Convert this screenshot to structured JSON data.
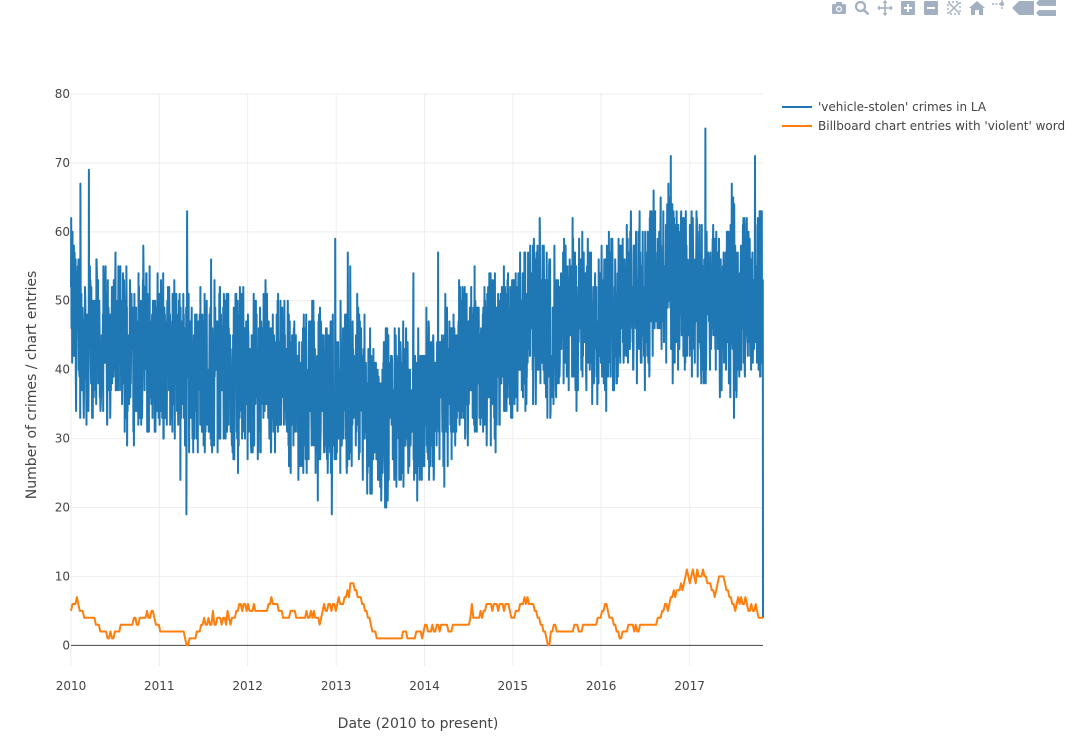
{
  "modebar": {
    "buttons": [
      "camera-icon",
      "zoom-icon",
      "pan-icon",
      "zoom-in-icon",
      "zoom-out-icon",
      "autoscale-icon",
      "home-icon",
      "spike-lines-icon",
      "hover-closest-icon",
      "hover-compare-icon"
    ],
    "color": "#a3b0c2"
  },
  "chart_data": {
    "type": "line",
    "xlabel": "Date (2010 to present)",
    "ylabel": "Number of crimes / chart entries",
    "x_ticks": [
      "2010",
      "2011",
      "2012",
      "2013",
      "2014",
      "2015",
      "2016",
      "2017"
    ],
    "y_ticks": [
      "0",
      "10",
      "20",
      "30",
      "40",
      "50",
      "60",
      "70",
      "80"
    ],
    "xlim": [
      "2010-01-01",
      "2017-10-31"
    ],
    "ylim": [
      -3,
      80
    ],
    "grid": true,
    "legend_position": "top-right",
    "series": [
      {
        "name": "'vehicle-stolen' crimes in LA",
        "color": "#1f77b4",
        "x_start": "2010-01-01",
        "x_end": "2017-10-31",
        "sampling": "daily",
        "monthly_mean": [
          50,
          46,
          44,
          45,
          43,
          44,
          44,
          45,
          43,
          43,
          44,
          42,
          44,
          43,
          41,
          42,
          42,
          42,
          41,
          40,
          41,
          40,
          39,
          40,
          41,
          40,
          40,
          39,
          40,
          38,
          37,
          40,
          40,
          39,
          38,
          39,
          38,
          38,
          36,
          37,
          38,
          37,
          36,
          37,
          38,
          38,
          37,
          38,
          36,
          35,
          34,
          33,
          34,
          35,
          36,
          34,
          35,
          34,
          35,
          36,
          36,
          37,
          38,
          40,
          41,
          39,
          41,
          42,
          41,
          42,
          42,
          44,
          43,
          44,
          45,
          46,
          47,
          48,
          47,
          45,
          44,
          46,
          48,
          49,
          48,
          47,
          48,
          49,
          47,
          47,
          48,
          50,
          50,
          49,
          50,
          51,
          52,
          53,
          53,
          52,
          51,
          52,
          50,
          51,
          50,
          49,
          50,
          48,
          49,
          50,
          49,
          51,
          50,
          51,
          50
        ],
        "spread": 14,
        "peak": 76,
        "min": 16,
        "last": 4
      },
      {
        "name": "Billboard chart entries with 'violent' words",
        "color": "#ff7f0e",
        "x_start": "2010-01-01",
        "x_end": "2017-10-31",
        "sampling": "weekly",
        "values": [
          5,
          6,
          6,
          6,
          7,
          6,
          5,
          5,
          5,
          4,
          4,
          4,
          4,
          4,
          4,
          4,
          4,
          3,
          3,
          3,
          2,
          2,
          2,
          2,
          2,
          1,
          1,
          2,
          1,
          1,
          2,
          2,
          2,
          2,
          3,
          3,
          3,
          3,
          3,
          3,
          3,
          3,
          3,
          4,
          4,
          3,
          3,
          4,
          4,
          4,
          4,
          4,
          5,
          4,
          4,
          5,
          5,
          4,
          3,
          3,
          3,
          2,
          2,
          2,
          2,
          2,
          2,
          2,
          2,
          2,
          2,
          2,
          2,
          2,
          2,
          2,
          2,
          2,
          1,
          0,
          0,
          1,
          1,
          1,
          1,
          1,
          2,
          2,
          2,
          3,
          3,
          4,
          3,
          3,
          4,
          3,
          3,
          5,
          3,
          3,
          4,
          4,
          4,
          3,
          4,
          4,
          3,
          5,
          4,
          3,
          4,
          4,
          4,
          5,
          5,
          6,
          6,
          5,
          6,
          6,
          5,
          6,
          5,
          5,
          5,
          6,
          5,
          5,
          5,
          5,
          5,
          5,
          5,
          5,
          5,
          6,
          6,
          7,
          6,
          6,
          6,
          6,
          5,
          5,
          5,
          4,
          4,
          4,
          4,
          4,
          5,
          5,
          5,
          5,
          4,
          4,
          4,
          4,
          4,
          4,
          4,
          5,
          4,
          4,
          5,
          4,
          5,
          4,
          4,
          4,
          3,
          4,
          5,
          6,
          5,
          5,
          6,
          6,
          5,
          6,
          6,
          5,
          6,
          7,
          6,
          6,
          6,
          7,
          7,
          8,
          7,
          9,
          9,
          9,
          8,
          8,
          7,
          7,
          7,
          6,
          6,
          5,
          5,
          4,
          4,
          3,
          2,
          2,
          2,
          1,
          1,
          1,
          1,
          1,
          1,
          1,
          1,
          1,
          1,
          1,
          1,
          1,
          1,
          1,
          1,
          1,
          1,
          2,
          2,
          2,
          1,
          1,
          1,
          1,
          1,
          1,
          2,
          2,
          2,
          2,
          1,
          2,
          3,
          3,
          2,
          2,
          2,
          3,
          2,
          2,
          3,
          3,
          2,
          3,
          3,
          3,
          3,
          3,
          2,
          2,
          2,
          3,
          3,
          3,
          3,
          3,
          3,
          3,
          3,
          3,
          3,
          3,
          3,
          4,
          6,
          4,
          4,
          4,
          4,
          4,
          5,
          4,
          5,
          5,
          6,
          6,
          6,
          6,
          5,
          6,
          6,
          6,
          5,
          6,
          6,
          6,
          5,
          6,
          6,
          6,
          5,
          4,
          4,
          4,
          5,
          5,
          5,
          6,
          6,
          6,
          7,
          6,
          7,
          6,
          6,
          6,
          6,
          5,
          5,
          4,
          4,
          3,
          3,
          2,
          2,
          1,
          0,
          0,
          2,
          2,
          3,
          3,
          2,
          2,
          2,
          2,
          2,
          2,
          2,
          2,
          2,
          2,
          2,
          2,
          3,
          3,
          3,
          2,
          2,
          2,
          3,
          3,
          3,
          3,
          3,
          3,
          3,
          3,
          3,
          3,
          4,
          4,
          4,
          5,
          5,
          6,
          6,
          5,
          4,
          4,
          4,
          3,
          3,
          2,
          2,
          1,
          1,
          2,
          2,
          2,
          2,
          3,
          3,
          3,
          3,
          2,
          3,
          2,
          2,
          3,
          3,
          3,
          3,
          3,
          3,
          3,
          3,
          3,
          3,
          3,
          3,
          4,
          4,
          4,
          5,
          5,
          6,
          6,
          5,
          6,
          7,
          7,
          8,
          7,
          8,
          8,
          8,
          9,
          8,
          9,
          10,
          11,
          10,
          9,
          10,
          11,
          10,
          9,
          11,
          10,
          10,
          10,
          11,
          10,
          10,
          9,
          9,
          9,
          8,
          8,
          7,
          8,
          9,
          10,
          10,
          10,
          10,
          9,
          8,
          8,
          7,
          7,
          6,
          6,
          5,
          6,
          7,
          6,
          7,
          6,
          6,
          7,
          6,
          5,
          5,
          6,
          5,
          5,
          6,
          5,
          4,
          4,
          4,
          4
        ]
      }
    ]
  }
}
